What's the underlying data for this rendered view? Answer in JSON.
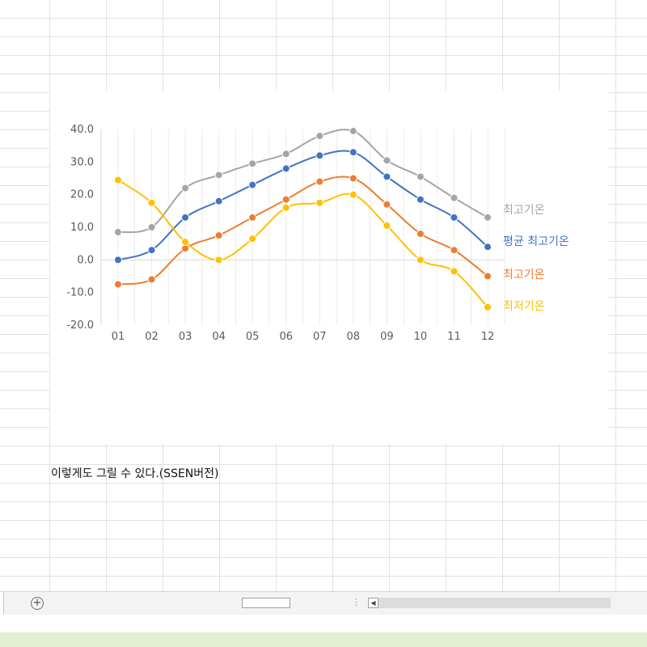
{
  "caption": "이렇게도 그릴 수 있다.(SSEN버전)",
  "tabbar": {
    "add_icon": "plus-circle-icon",
    "splitter_icon": "vertical-dots-icon",
    "scroll_left_icon": "triangle-left-icon"
  },
  "colors": {
    "gray": "#a5a5a5",
    "blue": "#4472c4",
    "orange": "#ed7d31",
    "yellow": "#ffc000",
    "gridline": "#e6e6e6",
    "axis": "#d9d9d9",
    "tick_text": "#595959",
    "status_green": "#e3f0cf"
  },
  "chart_data": {
    "type": "line",
    "x": [
      "01",
      "02",
      "03",
      "04",
      "05",
      "06",
      "07",
      "08",
      "09",
      "10",
      "11",
      "12"
    ],
    "ylim": [
      -20,
      40
    ],
    "yticks": [
      "40.0",
      "30.0",
      "20.0",
      "10.0",
      "0.0",
      "-10.0",
      "-20.0"
    ],
    "smooth": true,
    "legend": "right-end labels",
    "series": [
      {
        "name": "최고기온",
        "color": "#a5a5a5",
        "values": [
          8.5,
          10,
          22,
          26,
          29.5,
          32.5,
          38,
          39.5,
          30.5,
          25.5,
          19,
          13
        ]
      },
      {
        "name": "평균 최고기온",
        "color": "#4472c4",
        "values": [
          0,
          3,
          13,
          18,
          23,
          28,
          32,
          33,
          25.5,
          18.5,
          13,
          4
        ]
      },
      {
        "name": "최고기온",
        "color": "#ed7d31",
        "values": [
          -7.5,
          -6,
          3.5,
          7.5,
          13,
          18.5,
          24,
          25,
          17,
          8,
          3,
          -5
        ]
      },
      {
        "name": "최저기온",
        "color": "#ffc000",
        "values": [
          24.5,
          17.5,
          5.5,
          0,
          6.5,
          16,
          17.5,
          20,
          10.5,
          0,
          -3.5,
          -14.5
        ]
      }
    ]
  }
}
